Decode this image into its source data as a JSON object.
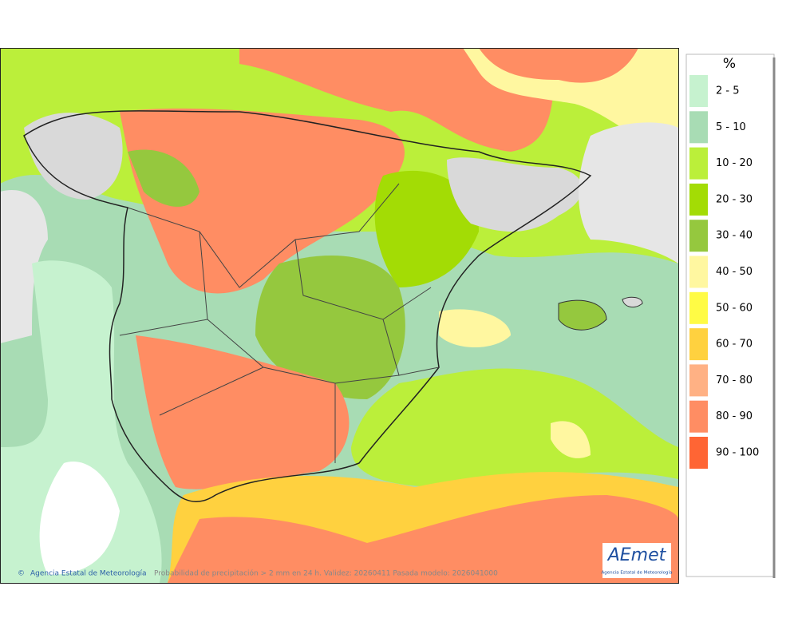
{
  "legend": {
    "title": "%",
    "items": [
      {
        "label": "2 - 5",
        "color": "#c6f2cf"
      },
      {
        "label": "5 - 10",
        "color": "#a8dcb4"
      },
      {
        "label": "10 - 20",
        "color": "#bbef3a"
      },
      {
        "label": "20 - 30",
        "color": "#a3dc05"
      },
      {
        "label": "30 - 40",
        "color": "#95c83e"
      },
      {
        "label": "40 - 50",
        "color": "#fff7a0"
      },
      {
        "label": "50 - 60",
        "color": "#fffb45"
      },
      {
        "label": "60 - 70",
        "color": "#ffd13f"
      },
      {
        "label": "70 - 80",
        "color": "#ffb184"
      },
      {
        "label": "80 - 90",
        "color": "#ff8d63"
      },
      {
        "label": "90 - 100",
        "color": "#ff6534"
      }
    ]
  },
  "map": {
    "credit": "Agencia Estatal de Meteorología",
    "caption": "Probabilidad de precipitación > 2 mm en 24 h. Validez: 20260411 Pasada modelo: 2026041000",
    "logo": {
      "name": "AEmet",
      "subtitle": "Agencia Estatal de Meteorología"
    }
  }
}
